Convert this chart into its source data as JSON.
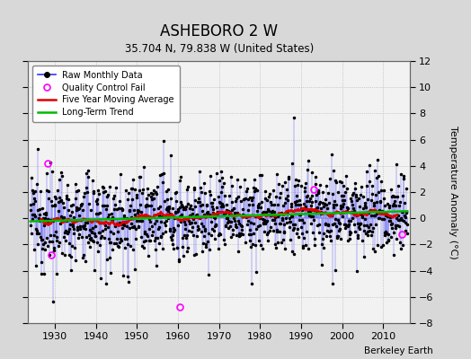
{
  "title": "ASHEBORO 2 W",
  "subtitle": "35.704 N, 79.838 W (United States)",
  "ylabel": "Temperature Anomaly (°C)",
  "xlabel_right": "Berkeley Earth",
  "ylim": [
    -8,
    12
  ],
  "yticks": [
    -8,
    -6,
    -4,
    -2,
    0,
    2,
    4,
    6,
    8,
    10,
    12
  ],
  "xlim": [
    1923.5,
    2016.5
  ],
  "xticks": [
    1930,
    1940,
    1950,
    1960,
    1970,
    1980,
    1990,
    2000,
    2010
  ],
  "start_year": 1924,
  "end_year": 2015,
  "bg_color": "#d8d8d8",
  "plot_bg_color": "#f2f2f2",
  "raw_line_color": "#3333ff",
  "raw_dot_color": "#000000",
  "qc_color": "#ff00ff",
  "moving_avg_color": "#dd0000",
  "trend_color": "#00bb00",
  "seed": 12345,
  "qc_years": [
    1928.2,
    1929.1,
    1960.5,
    1993.0,
    2014.5
  ],
  "qc_vals": [
    4.2,
    -2.8,
    -6.8,
    2.2,
    -1.2
  ]
}
